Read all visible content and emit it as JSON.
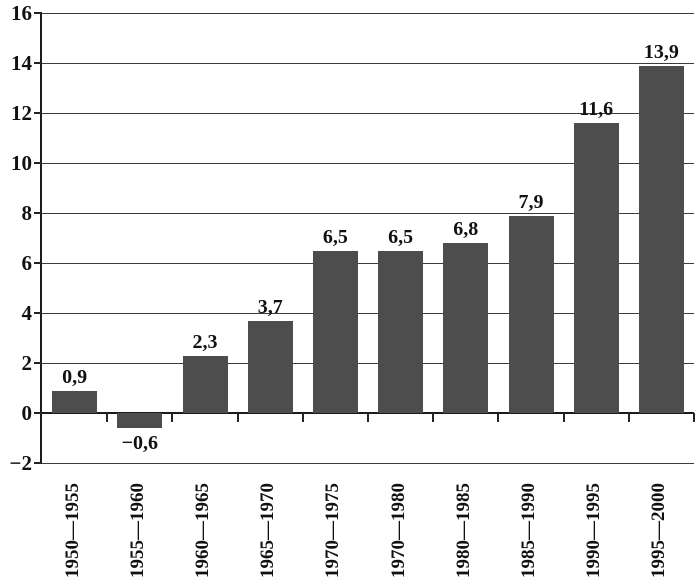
{
  "chart_data": {
    "type": "bar",
    "title": "",
    "xlabel": "",
    "ylabel": "",
    "categories": [
      "1950—1955",
      "1955—1960",
      "1960—1965",
      "1965—1970",
      "1970—1975",
      "1970—1980",
      "1980—1985",
      "1985—1990",
      "1990—1995",
      "1995—2000"
    ],
    "values": [
      0.9,
      -0.6,
      2.3,
      3.7,
      6.5,
      6.5,
      6.8,
      7.9,
      11.6,
      13.9
    ],
    "value_labels": [
      "0,9",
      "−0,6",
      "2,3",
      "3,7",
      "6,5",
      "6,5",
      "6,8",
      "7,9",
      "11,6",
      "13,9"
    ],
    "ylim": [
      -2,
      16
    ],
    "y_ticks": [
      16,
      14,
      12,
      10,
      8,
      6,
      4,
      2,
      0,
      -2
    ],
    "y_tick_labels": [
      "16",
      "14",
      "12",
      "10",
      "8",
      "6",
      "4",
      "2",
      "0",
      "−2"
    ],
    "grid": "horizontal-on",
    "legend": "none",
    "decimal_separator": ",",
    "bar_color": "#4d4d4d",
    "axis_color": "#1c1c1c",
    "gridline_color": "#3c3c3c",
    "text_color": "#111111",
    "background_color": "#ffffff"
  }
}
